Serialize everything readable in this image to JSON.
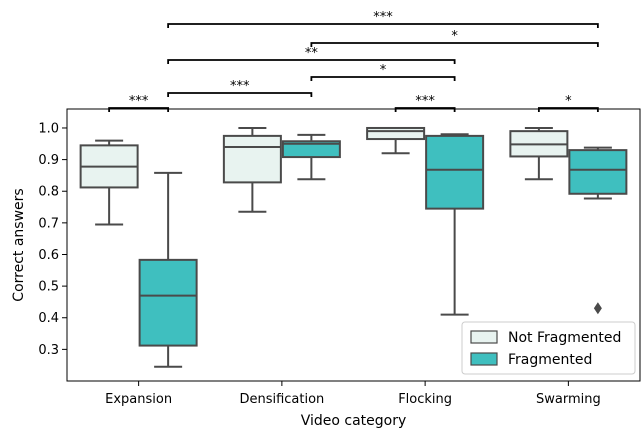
{
  "chart_data": {
    "type": "box",
    "xlabel": "Video category",
    "ylabel": "Correct answers",
    "ylim": [
      0.2,
      1.06
    ],
    "y_ticks": [
      0.3,
      0.4,
      0.5,
      0.6,
      0.7,
      0.8,
      0.9,
      1.0
    ],
    "y_tick_labels": [
      "0.3",
      "0.4",
      "0.5",
      "0.6",
      "0.7",
      "0.8",
      "0.9",
      "1.0"
    ],
    "categories": [
      "Expansion",
      "Densification",
      "Flocking",
      "Swarming"
    ],
    "series": [
      {
        "name": "Not Fragmented",
        "color": "#e8f3f0",
        "boxes": [
          {
            "whisker_low": 0.695,
            "q1": 0.812,
            "median": 0.878,
            "q3": 0.945,
            "whisker_high": 0.96,
            "outliers": []
          },
          {
            "whisker_low": 0.735,
            "q1": 0.828,
            "median": 0.94,
            "q3": 0.975,
            "whisker_high": 1.0,
            "outliers": []
          },
          {
            "whisker_low": 0.92,
            "q1": 0.965,
            "median": 0.99,
            "q3": 1.0,
            "whisker_high": 1.0,
            "outliers": []
          },
          {
            "whisker_low": 0.838,
            "q1": 0.91,
            "median": 0.948,
            "q3": 0.99,
            "whisker_high": 1.0,
            "outliers": []
          }
        ]
      },
      {
        "name": "Fragmented",
        "color": "#3fbfbf",
        "boxes": [
          {
            "whisker_low": 0.245,
            "q1": 0.312,
            "median": 0.47,
            "q3": 0.583,
            "whisker_high": 0.858,
            "outliers": []
          },
          {
            "whisker_low": 0.838,
            "q1": 0.908,
            "median": 0.95,
            "q3": 0.958,
            "whisker_high": 0.978,
            "outliers": []
          },
          {
            "whisker_low": 0.41,
            "q1": 0.745,
            "median": 0.868,
            "q3": 0.975,
            "whisker_high": 0.98,
            "outliers": []
          },
          {
            "whisker_low": 0.777,
            "q1": 0.792,
            "median": 0.868,
            "q3": 0.93,
            "whisker_high": 0.938,
            "outliers": [
              0.43
            ]
          }
        ]
      }
    ],
    "legend": {
      "position": "lower-right",
      "entries": [
        {
          "label": "Not Fragmented",
          "color": "#e8f3f0"
        },
        {
          "label": "Fragmented",
          "color": "#3fbfbf"
        }
      ]
    },
    "significance": [
      {
        "from": 0,
        "to": 1,
        "label": "***",
        "level": 0
      },
      {
        "from": 4,
        "to": 5,
        "label": "***",
        "level": 0
      },
      {
        "from": 6,
        "to": 7,
        "label": "*",
        "level": 0
      },
      {
        "from": 1,
        "to": 3,
        "label": "***",
        "level": 1
      },
      {
        "from": 3,
        "to": 5,
        "label": "*",
        "level": 1
      },
      {
        "from": 1,
        "to": 5,
        "label": "**",
        "level": 2
      },
      {
        "from": 3,
        "to": 7,
        "label": "*",
        "level": 3
      },
      {
        "from": 1,
        "to": 7,
        "label": "***",
        "level": 4
      }
    ],
    "grid": false,
    "edge_color": "#4a4a4a"
  }
}
